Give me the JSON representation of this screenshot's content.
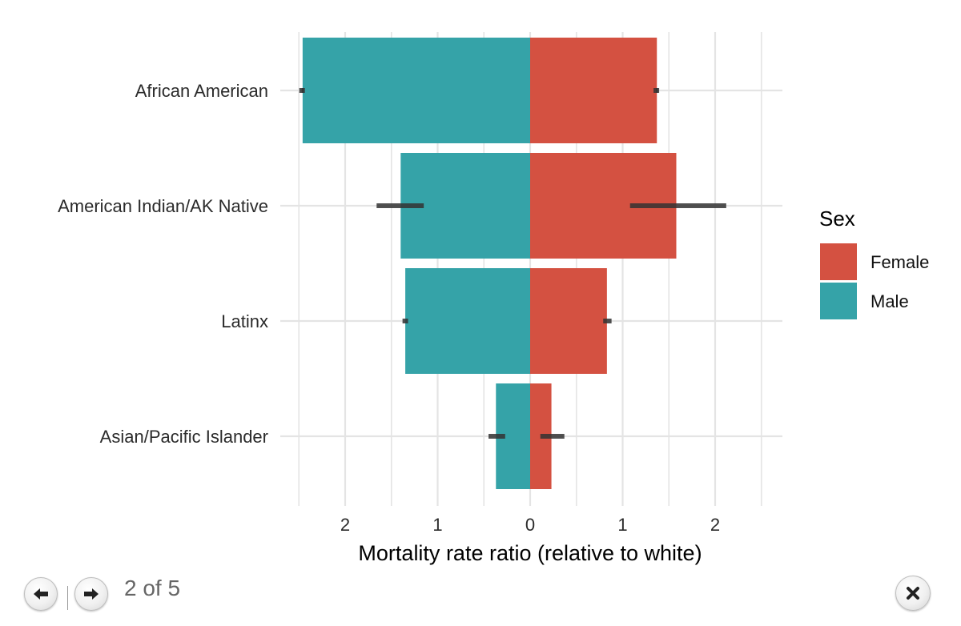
{
  "chart_data": {
    "type": "bar",
    "orientation": "horizontal-diverging",
    "categories": [
      "African American",
      "American Indian/AK Native",
      "Latinx",
      "Asian/Pacific Islander"
    ],
    "series": [
      {
        "name": "Female",
        "color": "#d45141",
        "values": [
          1.37,
          1.58,
          0.83,
          0.23
        ],
        "error_low": [
          1.36,
          1.08,
          0.79,
          0.11
        ],
        "error_high": [
          1.38,
          2.12,
          0.88,
          0.37
        ]
      },
      {
        "name": "Male",
        "color": "#35a3a8",
        "values": [
          2.46,
          1.4,
          1.35,
          0.37
        ],
        "error_low": [
          2.45,
          1.15,
          1.32,
          0.27
        ],
        "error_high": [
          2.47,
          1.66,
          1.38,
          0.45
        ]
      }
    ],
    "xlabel": "Mortality rate ratio (relative to white)",
    "x_ticks": [
      {
        "value": -2,
        "label": "2"
      },
      {
        "value": -1,
        "label": "1"
      },
      {
        "value": 0,
        "label": "0"
      },
      {
        "value": 1,
        "label": "1"
      },
      {
        "value": 2,
        "label": "2"
      }
    ],
    "xlim": [
      -2.5,
      2.5
    ],
    "grid": true,
    "legend": {
      "title": "Sex",
      "position": "right",
      "items": [
        "Female",
        "Male"
      ]
    }
  },
  "nav": {
    "counter": "2 of 5",
    "prev_icon": "arrow-left-icon",
    "next_icon": "arrow-right-icon",
    "close_icon": "close-icon"
  }
}
